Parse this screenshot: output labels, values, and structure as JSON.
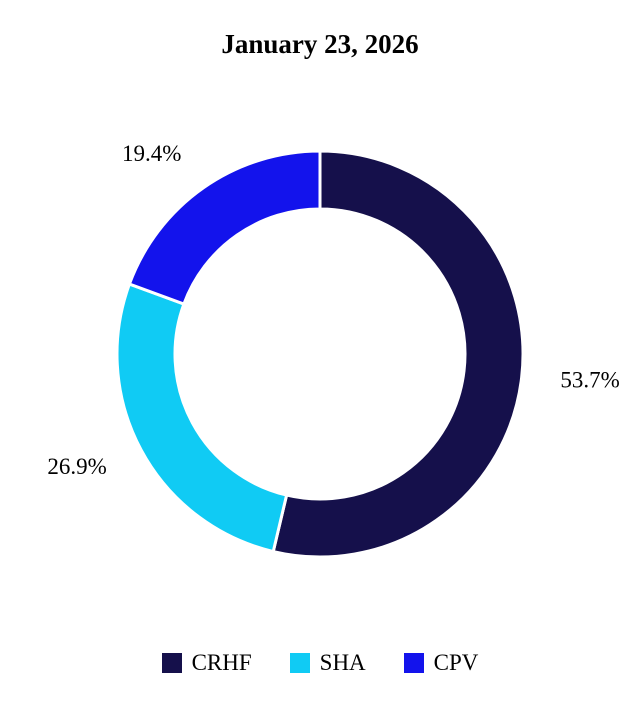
{
  "chart_data": {
    "type": "pie",
    "variant": "donut",
    "title": "January 23, 2026",
    "categories": [
      "CRHF",
      "SHA",
      "CPV"
    ],
    "values": [
      53.7,
      26.9,
      19.4
    ],
    "value_labels": [
      "53.7%",
      "26.9%",
      "19.4%"
    ],
    "colors": [
      "#15104b",
      "#10cbf4",
      "#1313ec"
    ],
    "legend_placement": "bottom"
  }
}
